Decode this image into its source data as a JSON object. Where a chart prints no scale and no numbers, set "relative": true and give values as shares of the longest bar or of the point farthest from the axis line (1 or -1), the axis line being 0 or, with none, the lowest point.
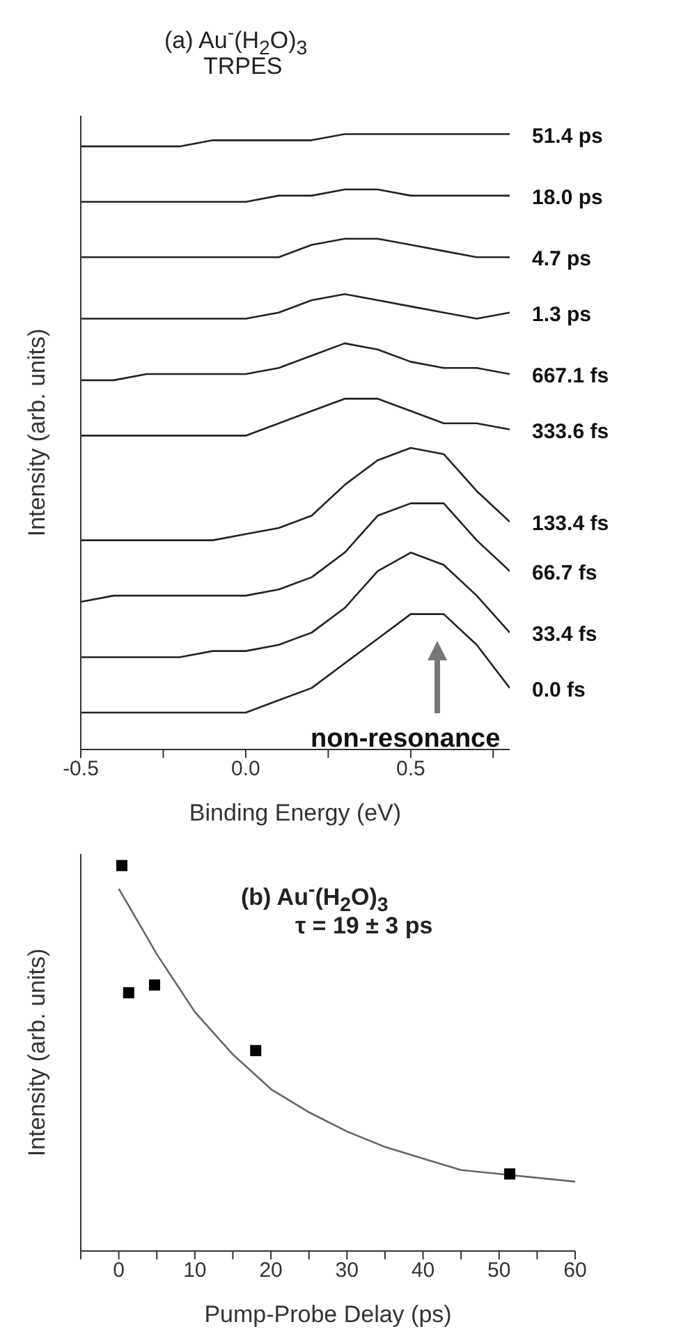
{
  "chart_data": [
    {
      "type": "line",
      "title": "(a) Au$^{-}$(H$_{2}$O)$_{3}$",
      "subtitle": "TRPES",
      "xlabel": "Binding Energy (eV)",
      "ylabel": "Intensity (arb. units)",
      "relative": true,
      "marker": "none",
      "x": [
        -0.5,
        -0.4,
        -0.3,
        -0.2,
        -0.1,
        0,
        0.1,
        0.2,
        0.3,
        0.4,
        0.5,
        0.6,
        0.7,
        0.8
      ],
      "xlim": [
        -0.5,
        0.8
      ],
      "xticks": [
        -0.5,
        {
          "value": -0.25,
          "label": null
        },
        {
          "value": 0,
          "label": "0.0"
        },
        {
          "value": 0.25,
          "label": null
        },
        0.5,
        {
          "value": 0.75,
          "label": null
        }
      ],
      "annotations": [
        "non-resonance"
      ],
      "series": [
        {
          "name": "0.0 fs",
          "color": "#222222",
          "values": [
            0.06,
            0.06,
            0.06,
            0.06,
            0.06,
            0.06,
            0.08,
            0.1,
            0.14,
            0.18,
            0.22,
            0.22,
            0.17,
            0.1
          ]
        },
        {
          "name": "33.4 fs",
          "color": "#222222",
          "values": [
            0.15,
            0.15,
            0.15,
            0.15,
            0.16,
            0.16,
            0.17,
            0.19,
            0.23,
            0.29,
            0.32,
            0.3,
            0.25,
            0.19
          ]
        },
        {
          "name": "66.7 fs",
          "color": "#222222",
          "values": [
            0.24,
            0.25,
            0.25,
            0.25,
            0.25,
            0.25,
            0.26,
            0.28,
            0.32,
            0.38,
            0.4,
            0.4,
            0.34,
            0.29
          ]
        },
        {
          "name": "133.4 fs",
          "color": "#222222",
          "values": [
            0.34,
            0.34,
            0.34,
            0.34,
            0.34,
            0.35,
            0.36,
            0.38,
            0.43,
            0.47,
            0.49,
            0.48,
            0.42,
            0.37
          ]
        },
        {
          "name": "333.6 fs",
          "color": "#222222",
          "values": [
            0.51,
            0.51,
            0.51,
            0.51,
            0.51,
            0.51,
            0.53,
            0.55,
            0.57,
            0.57,
            0.55,
            0.53,
            0.53,
            0.52
          ]
        },
        {
          "name": "667.1 fs",
          "color": "#222222",
          "values": [
            0.6,
            0.6,
            0.61,
            0.61,
            0.61,
            0.61,
            0.62,
            0.64,
            0.66,
            0.65,
            0.63,
            0.62,
            0.62,
            0.61
          ]
        },
        {
          "name": "1.3  ps",
          "color": "#222222",
          "values": [
            0.7,
            0.7,
            0.7,
            0.7,
            0.7,
            0.7,
            0.71,
            0.73,
            0.74,
            0.73,
            0.72,
            0.71,
            0.7,
            0.71
          ]
        },
        {
          "name": "4.7  ps",
          "color": "#222222",
          "values": [
            0.8,
            0.8,
            0.8,
            0.8,
            0.8,
            0.8,
            0.8,
            0.82,
            0.83,
            0.83,
            0.82,
            0.81,
            0.8,
            0.8
          ]
        },
        {
          "name": "18.0  ps",
          "color": "#222222",
          "values": [
            0.89,
            0.89,
            0.89,
            0.89,
            0.89,
            0.89,
            0.9,
            0.9,
            0.91,
            0.91,
            0.9,
            0.9,
            0.9,
            0.9
          ]
        },
        {
          "name": "51.4  ps",
          "color": "#222222",
          "values": [
            0.98,
            0.98,
            0.98,
            0.98,
            0.99,
            0.99,
            0.99,
            0.99,
            1.0,
            1.0,
            1.0,
            1.0,
            1.0,
            1.0
          ]
        }
      ]
    },
    {
      "type": "scatter",
      "title": "(b) Au$^{-}$(H$_{2}$O)$_{3}$",
      "subtitle": "τ = 19 ± 3 ps",
      "xlabel": "Pump-Probe Delay (ps)",
      "ylabel": "Intensity (arb. units)",
      "relative": true,
      "xlim": [
        -5,
        60
      ],
      "xticks": [
        {
          "value": -5,
          "label": null
        },
        0,
        {
          "value": 5,
          "label": null
        },
        10,
        {
          "value": 15,
          "label": null
        },
        20,
        {
          "value": 25,
          "label": null
        },
        30,
        {
          "value": 35,
          "label": null
        },
        40,
        {
          "value": 45,
          "label": null
        },
        50,
        {
          "value": 55,
          "label": null
        },
        60
      ],
      "series": [
        {
          "marker": "square",
          "color": "#000000",
          "x": [
            0.4,
            1.3,
            4.7,
            18,
            51.4
          ],
          "values": [
            1.0,
            0.67,
            0.69,
            0.52,
            0.2
          ]
        },
        {
          "type": "line",
          "color": "#666666",
          "x": [
            0,
            5,
            10,
            15,
            20,
            25,
            30,
            35,
            40,
            45,
            50,
            55,
            60
          ],
          "values": [
            0.94,
            0.77,
            0.62,
            0.51,
            0.42,
            0.36,
            0.31,
            0.27,
            0.24,
            0.21,
            0.2,
            0.19,
            0.18
          ]
        }
      ]
    }
  ]
}
